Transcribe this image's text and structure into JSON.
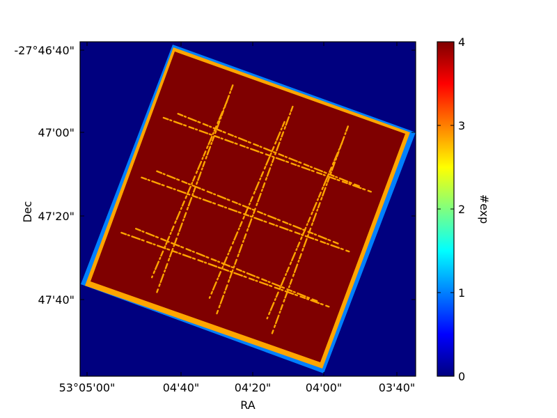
{
  "chart_data": {
    "type": "heatmap",
    "title": "",
    "xlabel": "RA",
    "ylabel": "Dec",
    "x_ticks": [
      "53°05'00\"",
      "04'40\"",
      "04'20\"",
      "04'00\"",
      "03'40\""
    ],
    "y_ticks": [
      "-27°46'40\"",
      "47'00\"",
      "47'20\"",
      "47'40\""
    ],
    "colorbar": {
      "label": "#exp",
      "min": 0,
      "max": 4,
      "ticks": [
        "0",
        "1",
        "2",
        "3",
        "4"
      ],
      "colormap": "jet"
    },
    "background_value": 0,
    "footprint": {
      "interior_value": 4,
      "edge_value": 3,
      "outer_fringe_value": 1,
      "tile_seam_value": 3,
      "grid_tiles": "4x4"
    }
  },
  "colors": {
    "background": "#00007f",
    "interior": "#7f0000",
    "edge": "#ffa500",
    "fringe": "#0080ff",
    "frame": "#000000"
  }
}
